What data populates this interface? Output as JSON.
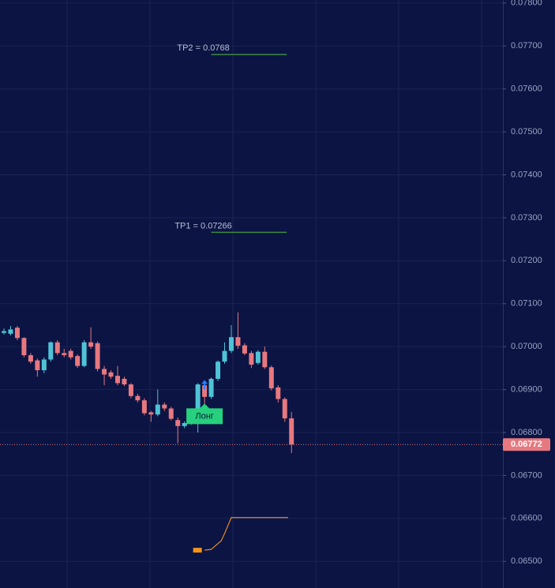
{
  "chart_data": {
    "type": "candlestick",
    "candles": {
      "open": [
        0.07032,
        0.0703,
        0.07044,
        0.0702,
        0.0698,
        0.06968,
        0.06945,
        0.0697,
        0.0701,
        0.06985,
        0.0699,
        0.06978,
        0.06955,
        0.0701,
        0.07008,
        0.06948,
        0.0694,
        0.06932,
        0.06925,
        0.06912,
        0.06885,
        0.06875,
        0.06847,
        0.06842,
        0.06865,
        0.06856,
        0.06829,
        0.06815,
        0.06822,
        0.06826,
        0.0691,
        0.06883,
        0.06925,
        0.06965,
        0.0699,
        0.07022,
        0.07003,
        0.06985,
        0.06962,
        0.06988,
        0.06952,
        0.06905,
        0.06878,
        0.06833
      ],
      "high": [
        0.07042,
        0.07048,
        0.07048,
        0.07022,
        0.06985,
        0.06972,
        0.06975,
        0.07012,
        0.07015,
        0.06995,
        0.06995,
        0.06982,
        0.07015,
        0.07045,
        0.07012,
        0.06955,
        0.06945,
        0.06955,
        0.0693,
        0.06915,
        0.0689,
        0.0688,
        0.0685,
        0.069,
        0.0687,
        0.0686,
        0.06835,
        0.06826,
        0.0684,
        0.06915,
        0.06915,
        0.06928,
        0.06968,
        0.0701,
        0.0705,
        0.0708,
        0.07008,
        0.0699,
        0.06992,
        0.07,
        0.06956,
        0.0691,
        0.06882,
        0.06848
      ],
      "low": [
        0.07028,
        0.07026,
        0.07015,
        0.06975,
        0.0696,
        0.0693,
        0.06938,
        0.06965,
        0.0698,
        0.06975,
        0.0697,
        0.0695,
        0.06952,
        0.06995,
        0.06942,
        0.0691,
        0.06925,
        0.0691,
        0.06908,
        0.0688,
        0.0687,
        0.0684,
        0.06825,
        0.06838,
        0.0685,
        0.06828,
        0.06775,
        0.0681,
        0.06818,
        0.068,
        0.0686,
        0.06878,
        0.0692,
        0.0696,
        0.06985,
        0.06995,
        0.0698,
        0.0695,
        0.06958,
        0.06948,
        0.06898,
        0.0687,
        0.06825,
        0.06752
      ],
      "close": [
        0.07036,
        0.0704,
        0.0702,
        0.0698,
        0.06965,
        0.06945,
        0.0697,
        0.0701,
        0.06985,
        0.0698,
        0.06975,
        0.06955,
        0.0701,
        0.07,
        0.06948,
        0.06935,
        0.0693,
        0.06915,
        0.06912,
        0.06885,
        0.06875,
        0.06845,
        0.06842,
        0.06865,
        0.06856,
        0.06832,
        0.06815,
        0.06822,
        0.06826,
        0.06912,
        0.06883,
        0.06925,
        0.06965,
        0.0699,
        0.07022,
        0.07002,
        0.06984,
        0.06958,
        0.06988,
        0.06952,
        0.06903,
        0.06878,
        0.06833,
        0.06772
      ]
    },
    "up_color": "#4fc3d6",
    "down_color": "#e8787f",
    "ylim": [
      0.06438,
      0.07807
    ],
    "yticks": [
      {
        "value": 0.065,
        "label": "0.06500"
      },
      {
        "value": 0.066,
        "label": "0.06600"
      },
      {
        "value": 0.067,
        "label": "0.06700"
      },
      {
        "value": 0.068,
        "label": "0.06800"
      },
      {
        "value": 0.069,
        "label": "0.06900"
      },
      {
        "value": 0.07,
        "label": "0.07000"
      },
      {
        "value": 0.071,
        "label": "0.07100"
      },
      {
        "value": 0.072,
        "label": "0.07200"
      },
      {
        "value": 0.073,
        "label": "0.07300"
      },
      {
        "value": 0.074,
        "label": "0.07400"
      },
      {
        "value": 0.075,
        "label": "0.07500"
      },
      {
        "value": 0.076,
        "label": "0.07600"
      },
      {
        "value": 0.077,
        "label": "0.07700"
      },
      {
        "value": 0.078,
        "label": "0.07800"
      }
    ],
    "grid": true,
    "levels": [
      {
        "label": "TP2 = 0.0768",
        "value": 0.0768,
        "from": 31,
        "to": 42.3,
        "color": "#3f8a3f"
      },
      {
        "label": "TP1 = 0.07266",
        "value": 0.07266,
        "from": 31,
        "to": 42.3,
        "color": "#3f8a3f"
      }
    ],
    "last_price": {
      "value": 0.06772,
      "label": "0.06772",
      "color": "#e8787f"
    },
    "signal": {
      "label": "Лонг",
      "index": 30,
      "color": "#26d07c"
    },
    "overlay_line": {
      "color": "#e0892a",
      "x": [
        30,
        31,
        32.5,
        33,
        34,
        42.5
      ],
      "values": [
        0.06526,
        0.06528,
        0.06548,
        0.06565,
        0.06602,
        0.06602
      ]
    },
    "overlay_marker": {
      "x": 29,
      "value": 0.06526,
      "color": "#f7931a"
    }
  }
}
